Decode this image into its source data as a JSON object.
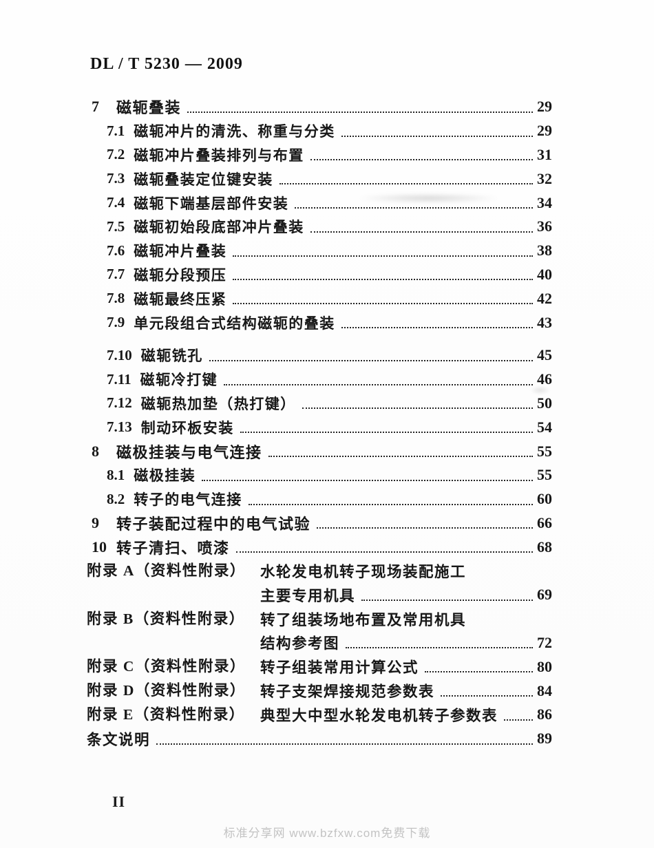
{
  "header": {
    "standard_number": "DL / T 5230 — 2009"
  },
  "toc": {
    "entries": [
      {
        "type": "chapter",
        "num": "7",
        "title": "磁轭叠装",
        "page": "29"
      },
      {
        "type": "section",
        "num": "7.1",
        "title": "磁轭冲片的清洗、称重与分类",
        "page": "29"
      },
      {
        "type": "section",
        "num": "7.2",
        "title": "磁轭冲片叠装排列与布置",
        "page": "31"
      },
      {
        "type": "section",
        "num": "7.3",
        "title": "磁轭叠装定位键安装",
        "page": "32"
      },
      {
        "type": "section",
        "num": "7.4",
        "title": "磁轭下端基层部件安装",
        "page": "34"
      },
      {
        "type": "section",
        "num": "7.5",
        "title": "磁轭初始段底部冲片叠装",
        "page": "36"
      },
      {
        "type": "section",
        "num": "7.6",
        "title": "磁轭冲片叠装",
        "page": "38"
      },
      {
        "type": "section",
        "num": "7.7",
        "title": "磁轭分段预压",
        "page": "40"
      },
      {
        "type": "section",
        "num": "7.8",
        "title": "磁轭最终压紧",
        "page": "42"
      },
      {
        "type": "section",
        "num": "7.9",
        "title": "单元段组合式结构磁轭的叠装",
        "page": "43"
      },
      {
        "type": "section",
        "num": "7.10",
        "title": "磁轭铣孔",
        "page": "45",
        "gap_before": true
      },
      {
        "type": "section",
        "num": "7.11",
        "title": "磁轭冷打键",
        "page": "46"
      },
      {
        "type": "section",
        "num": "7.12",
        "title": "磁轭热加垫（热打键）",
        "page": "50"
      },
      {
        "type": "section",
        "num": "7.13",
        "title": "制动环板安装",
        "page": "54"
      },
      {
        "type": "chapter",
        "num": "8",
        "title": "磁极挂装与电气连接",
        "page": "55"
      },
      {
        "type": "section",
        "num": "8.1",
        "title": "磁极挂装",
        "page": "55"
      },
      {
        "type": "section",
        "num": "8.2",
        "title": "转子的电气连接",
        "page": "60"
      },
      {
        "type": "chapter",
        "num": "9",
        "title": "转子装配过程中的电气试验",
        "page": "66"
      },
      {
        "type": "chapter",
        "num": "10",
        "title": "转子清扫、喷漆",
        "page": "68"
      },
      {
        "type": "appendix",
        "label": "附录 A（资料性附录）",
        "lines": [
          "水轮发电机转子现场装配施工",
          "主要专用机具"
        ],
        "page": "69"
      },
      {
        "type": "appendix",
        "label": "附录 B（资料性附录）",
        "lines": [
          "转了组装场地布置及常用机具",
          "结构参考图"
        ],
        "page": "72"
      },
      {
        "type": "appendix",
        "label": "附录 C（资料性附录）",
        "lines": [
          "转子组装常用计算公式"
        ],
        "page": "80"
      },
      {
        "type": "appendix",
        "label": "附录 D（资料性附录）",
        "lines": [
          "转子支架焊接规范参数表"
        ],
        "page": "84"
      },
      {
        "type": "appendix",
        "label": "附录 E（资料性附录）",
        "lines": [
          "典型大中型水轮发电机转子参数表"
        ],
        "page": "86"
      },
      {
        "type": "plain",
        "title": "条文说明",
        "page": "89"
      }
    ]
  },
  "footer": {
    "page_label": "II",
    "watermark": "标准分享网 www.bzfxw.com免费下载"
  }
}
